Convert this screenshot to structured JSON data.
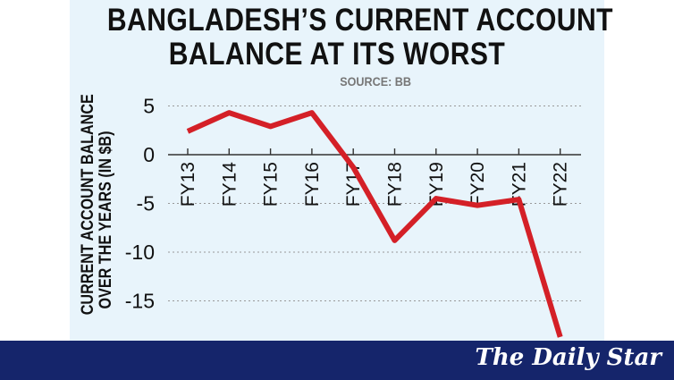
{
  "title": {
    "line1": "BANGLADESH’S CURRENT ACCOUNT",
    "line2": "BALANCE AT ITS WORST"
  },
  "source": "SOURCE: BB",
  "footer": {
    "logo_text": "The Daily Star"
  },
  "colors": {
    "panel": "#e8f4fb",
    "line": "#d42027",
    "footer": "#15256b",
    "grid": "#999999"
  },
  "chart_data": {
    "type": "line",
    "title": "BANGLADESH’S CURRENT ACCOUNT BALANCE AT ITS WORST",
    "subtitle": "SOURCE: BB",
    "ylabel_lines": [
      "CURRENT ACCOUNT BALANCE",
      "OVER THE YEARS (IN $B)"
    ],
    "xlabel": "",
    "categories": [
      "FY13",
      "FY14",
      "FY15",
      "FY16",
      "FY17",
      "FY18",
      "FY19",
      "FY20",
      "FY21",
      "FY22"
    ],
    "values": [
      2.4,
      4.3,
      2.9,
      4.3,
      -1.3,
      -8.8,
      -4.5,
      -5.2,
      -4.6,
      -18.7
    ],
    "yticks": [
      5,
      0,
      -5,
      -10,
      -15
    ],
    "ytick_labels": [
      "5",
      "0",
      "-5",
      "-10",
      "-15"
    ],
    "ylim": [
      -18.7,
      5.8
    ],
    "grid": "horizontal dotted",
    "legend": "none"
  }
}
